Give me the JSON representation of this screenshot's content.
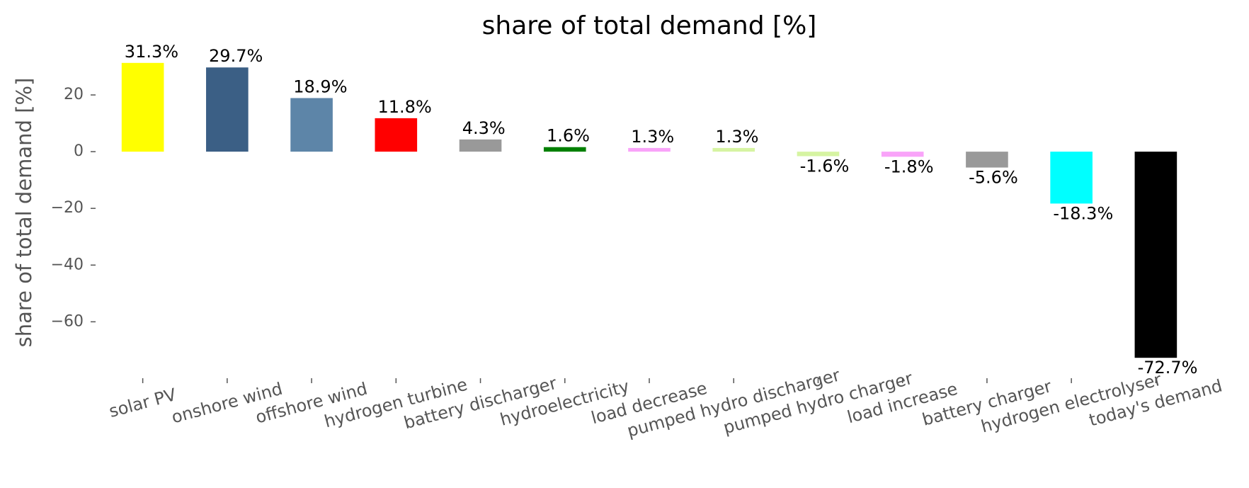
{
  "chart_data": {
    "type": "bar",
    "title": "share of total demand [%]",
    "y_label": "share of total demand [%]",
    "categories": [
      "solar PV",
      "onshore wind",
      "offshore wind",
      "hydrogen turbine",
      "battery discharger",
      "hydroelectricity",
      "load decrease",
      "pumped hydro discharger",
      "pumped hydro charger",
      "load increase",
      "battery charger",
      "hydrogen electrolyser",
      "today's demand"
    ],
    "values": [
      31.3,
      29.7,
      18.9,
      11.8,
      4.3,
      1.6,
      1.3,
      1.3,
      -1.6,
      -1.8,
      -5.6,
      -18.3,
      -72.7
    ],
    "value_labels": [
      "31.3%",
      "29.7%",
      "18.9%",
      "11.8%",
      "4.3%",
      "1.6%",
      "1.3%",
      "1.3%",
      "-1.6%",
      "-1.8%",
      "-5.6%",
      "-18.3%",
      "-72.7%"
    ],
    "colors": [
      "#ffff00",
      "#3b5f85",
      "#5d85a8",
      "#ff0000",
      "#999999",
      "#008000",
      "#f9a3f9",
      "#d6f4a2",
      "#d6f4a2",
      "#f9a3f9",
      "#999999",
      "#00ffff",
      "#000000"
    ],
    "ylim": [
      -77.9,
      36.5
    ],
    "yticks": [
      {
        "value": -60,
        "label": "−60"
      },
      {
        "value": -40,
        "label": "−40"
      },
      {
        "value": -20,
        "label": "−20"
      },
      0,
      20
    ],
    "grid": false
  }
}
